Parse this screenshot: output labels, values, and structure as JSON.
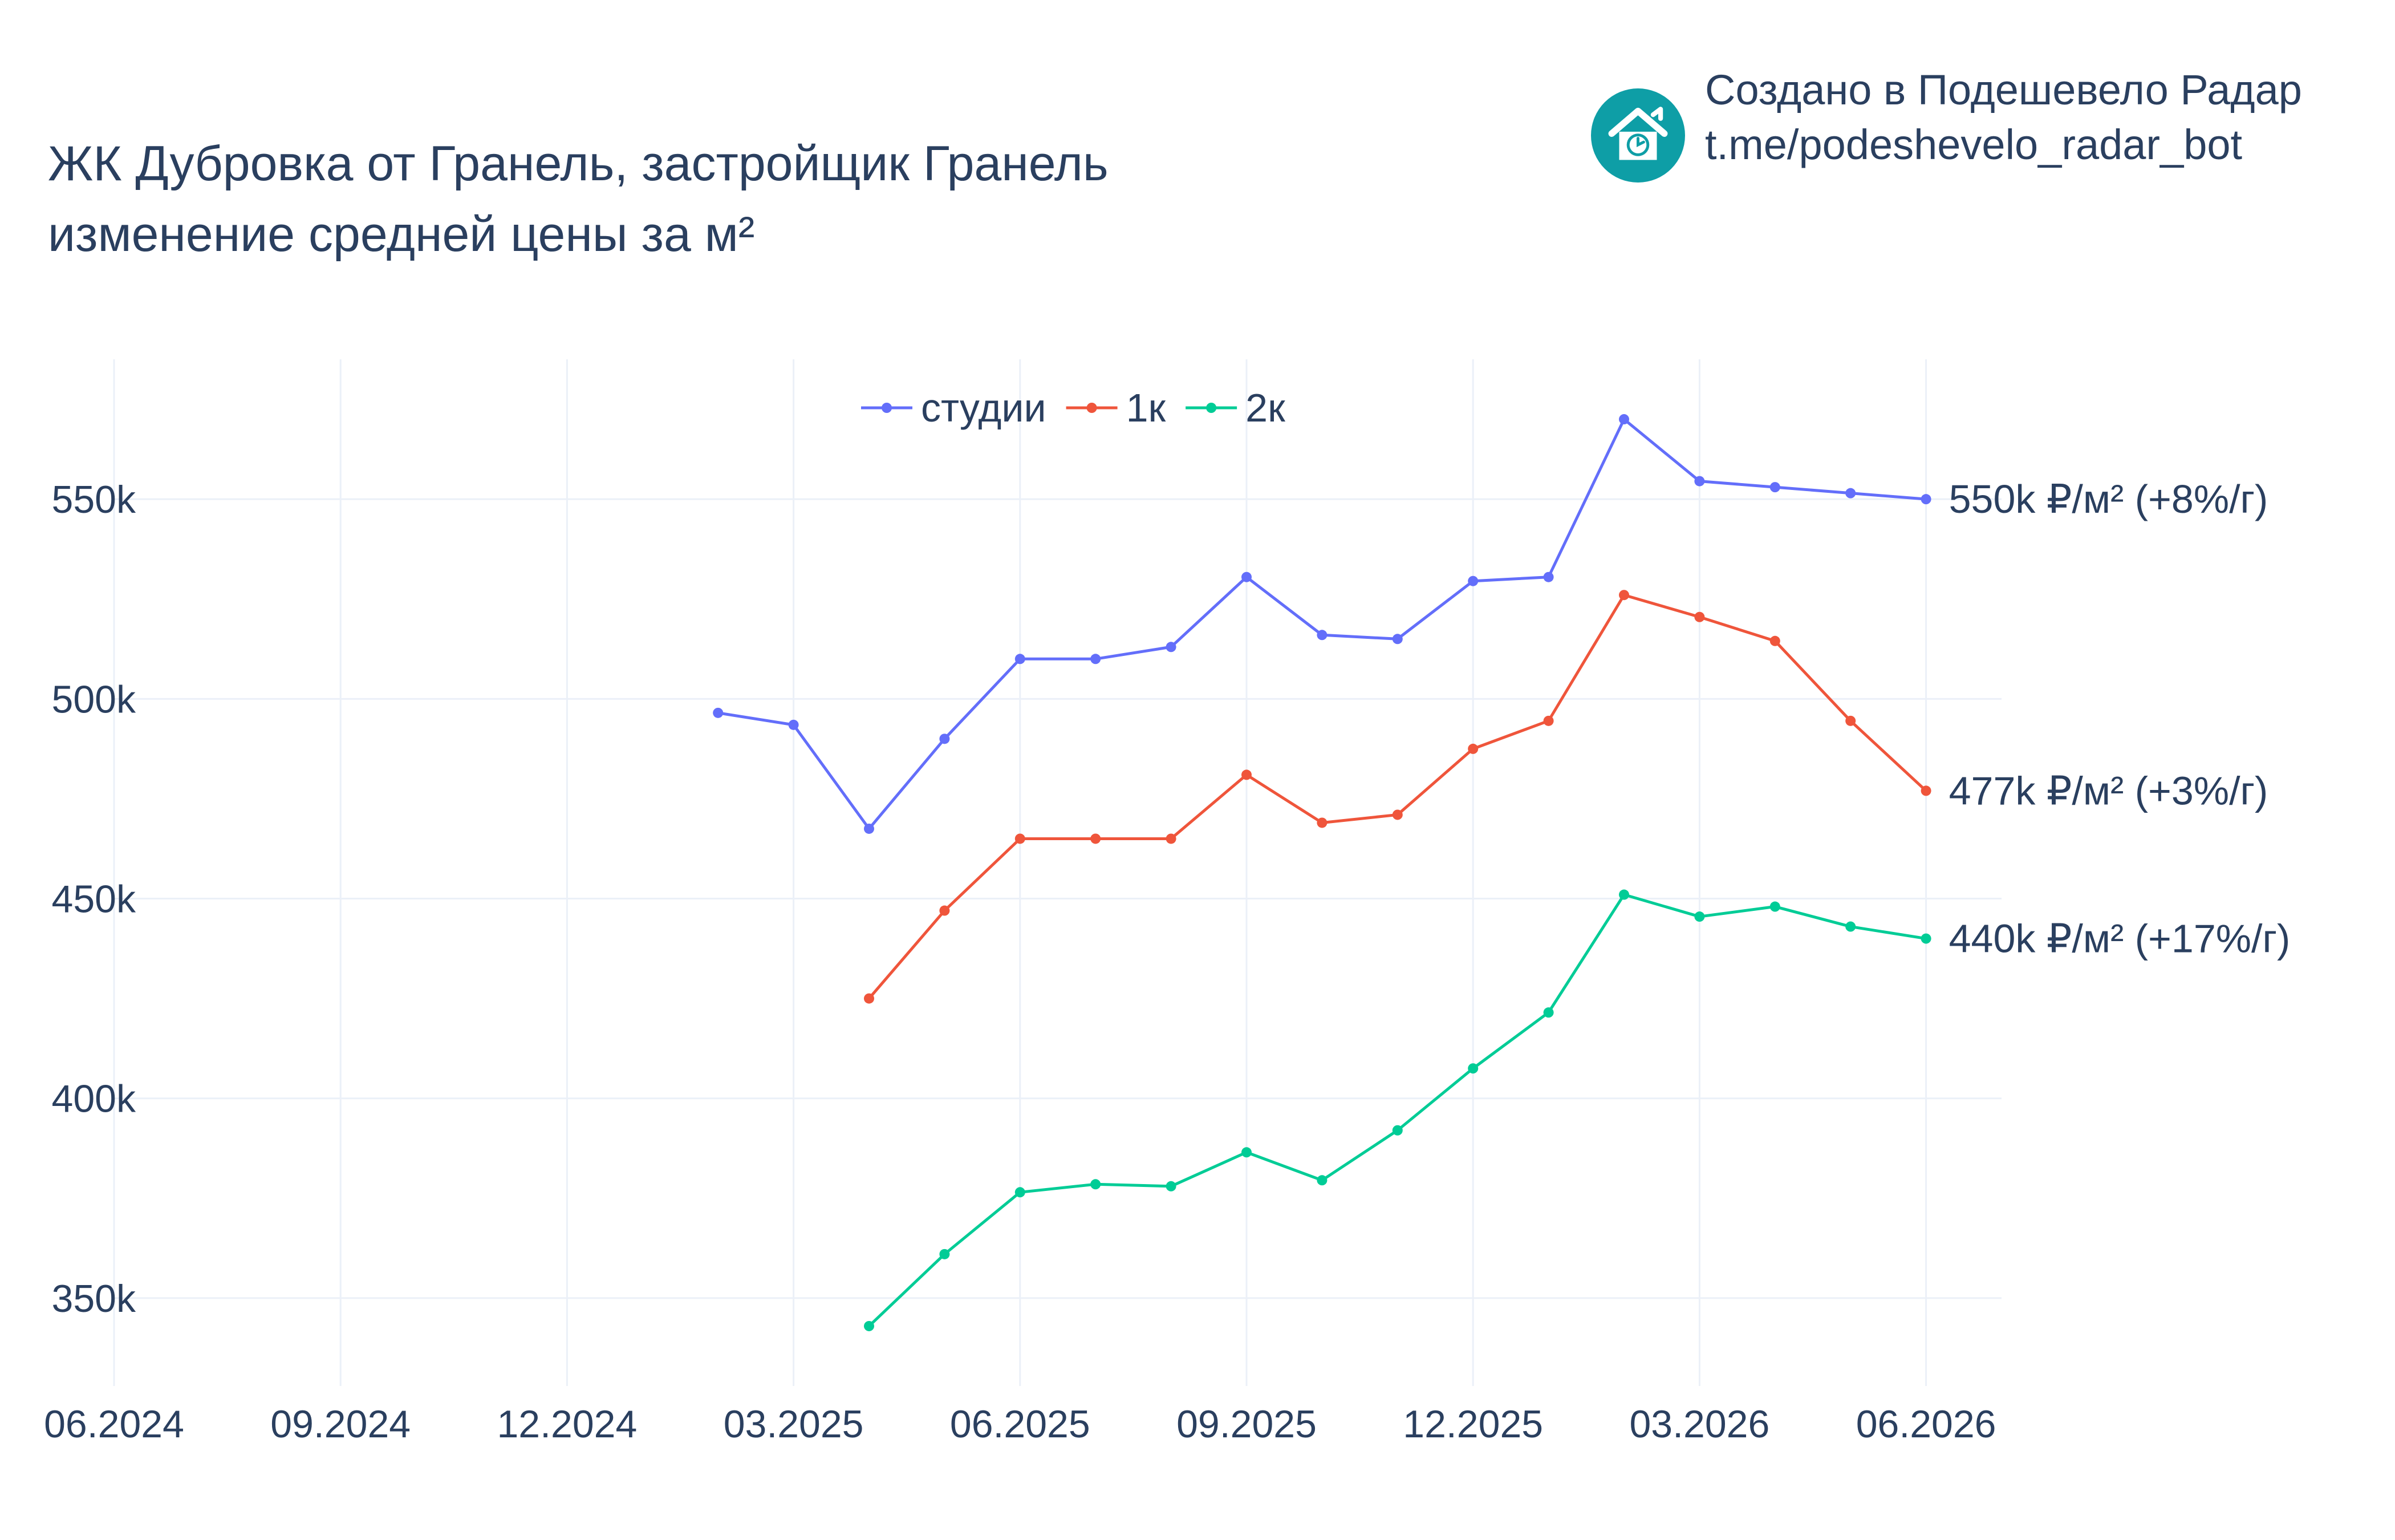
{
  "header": {
    "title_line1": "ЖК Дубровка от Гранель, застройщик Гранель",
    "title_line2": "изменение средней цены за м²"
  },
  "brand": {
    "line1": "Создано в Подешевело Радар",
    "line2": "t.me/podeshevelo_radar_bot",
    "icon": "house-clock-icon",
    "color": "#0e9ea6"
  },
  "chart_data": {
    "type": "line",
    "title": "ЖК Дубровка от Гранель, застройщик Гранель изменение средней цены за м²",
    "xlabel": "",
    "ylabel": "",
    "x_tick_labels": [
      "06.2024",
      "09.2024",
      "12.2024",
      "03.2025",
      "06.2025",
      "09.2025",
      "12.2025",
      "03.2026",
      "06.2026"
    ],
    "y_tick_labels": [
      "350k",
      "400k",
      "450k",
      "500k",
      "550k"
    ],
    "y_ticks": [
      350000,
      400000,
      450000,
      500000,
      550000
    ],
    "xlim": [
      "2024-06",
      "2026-07"
    ],
    "ylim": [
      328000,
      585000
    ],
    "grid": true,
    "legend_position": "top-center",
    "series": [
      {
        "name": "студии",
        "color": "#636efa",
        "x": [
          "2025-02",
          "2025-03",
          "2025-04",
          "2025-05",
          "2025-06",
          "2025-07",
          "2025-08",
          "2025-09",
          "2025-10",
          "2025-11",
          "2025-12",
          "2026-01",
          "2026-02",
          "2026-03",
          "2026-04",
          "2026-05",
          "2026-06"
        ],
        "values": [
          496500,
          493500,
          467500,
          490000,
          510000,
          510000,
          513000,
          530500,
          516000,
          515000,
          529500,
          530500,
          570000,
          554500,
          553000,
          551500,
          550000
        ],
        "end_label": "550k ₽/м² (+8%/г)"
      },
      {
        "name": "1к",
        "color": "#ef553b",
        "x": [
          "2025-04",
          "2025-05",
          "2025-06",
          "2025-07",
          "2025-08",
          "2025-09",
          "2025-10",
          "2025-11",
          "2025-12",
          "2026-01",
          "2026-02",
          "2026-03",
          "2026-04",
          "2026-05",
          "2026-06"
        ],
        "values": [
          425000,
          447000,
          465000,
          465000,
          465000,
          481000,
          469000,
          471000,
          487500,
          494500,
          526000,
          520500,
          514500,
          494500,
          477000
        ],
        "end_label": "477k ₽/м² (+3%/г)"
      },
      {
        "name": "2к",
        "color": "#00cc96",
        "x": [
          "2025-04",
          "2025-05",
          "2025-06",
          "2025-07",
          "2025-08",
          "2025-09",
          "2025-10",
          "2025-11",
          "2025-12",
          "2026-01",
          "2026-02",
          "2026-03",
          "2026-04",
          "2026-05",
          "2026-06"
        ],
        "values": [
          343000,
          361000,
          376500,
          378500,
          378000,
          386500,
          379500,
          392000,
          407500,
          421500,
          451000,
          445500,
          448000,
          443000,
          440000
        ],
        "end_label": "440k ₽/м² (+17%/г)"
      }
    ]
  }
}
